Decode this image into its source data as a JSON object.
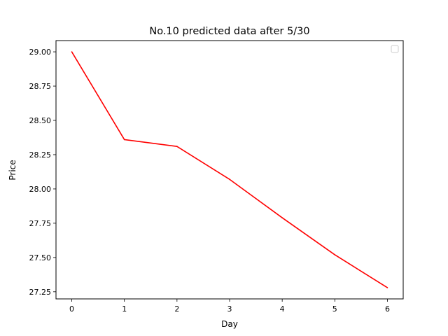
{
  "chart_data": {
    "type": "line",
    "title": "No.10 predicted data after 5/30",
    "xlabel": "Day",
    "ylabel": "Price",
    "x": [
      0,
      1,
      2,
      3,
      4,
      5,
      6
    ],
    "series": [
      {
        "values": [
          29.0,
          28.36,
          28.31,
          28.07,
          27.79,
          27.52,
          27.28
        ],
        "color": "#ff0000"
      }
    ],
    "xlim": [
      -0.3,
      6.3
    ],
    "ylim": [
      27.198,
      29.082
    ],
    "xticks": [
      "0",
      "1",
      "2",
      "3",
      "4",
      "5",
      "6"
    ],
    "yticks": [
      "27.25",
      "27.50",
      "27.75",
      "28.00",
      "28.25",
      "28.50",
      "28.75",
      "29.00"
    ],
    "grid": false,
    "legend": {
      "placement": "top-right",
      "entries": []
    }
  }
}
